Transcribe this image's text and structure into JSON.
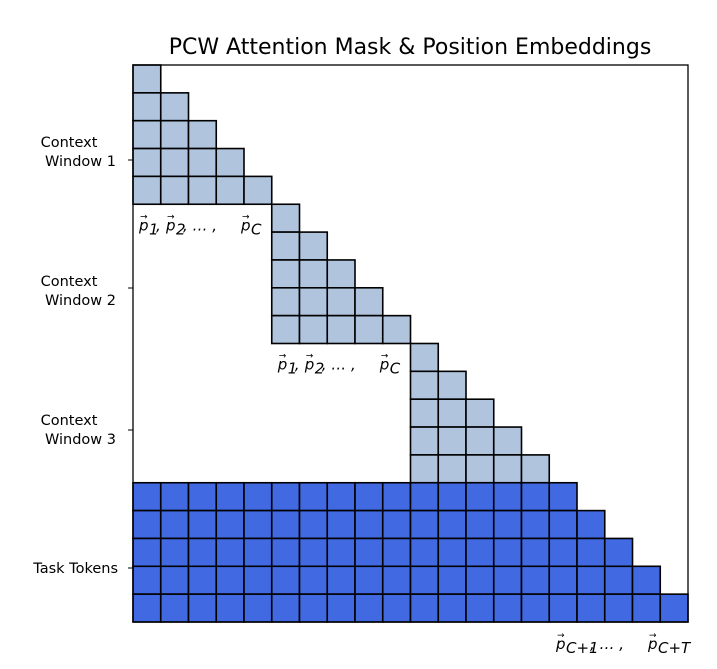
{
  "title": "PCW Attention Mask & Position Embeddings",
  "rows": [
    {
      "label_line1": "Context",
      "label_line2": "Window 1"
    },
    {
      "label_line1": "Context",
      "label_line2": "Window 2"
    },
    {
      "label_line1": "Context",
      "label_line2": "Window 3"
    },
    {
      "label_line1": "Task Tokens",
      "label_line2": ""
    }
  ],
  "position_labels": {
    "context": {
      "p": "p",
      "sub1": "1",
      "sub2": "2",
      "subC": "C",
      "sep": ", ",
      "dots": ", … , "
    },
    "task": {
      "p": "p",
      "subStart": "C+1",
      "subEnd": "C+T",
      "dots": ", … , "
    }
  },
  "mask": {
    "context_windows": 3,
    "tokens_per_window": 5,
    "task_tokens": 5
  },
  "colors": {
    "context_cell": "#b0c4de",
    "task_cell": "#4169e1",
    "grid_line": "#000000",
    "frame": "#000000",
    "background": "#ffffff"
  }
}
